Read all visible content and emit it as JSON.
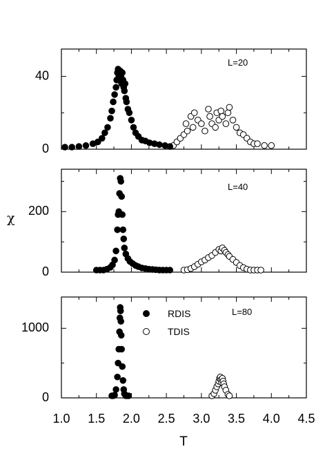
{
  "chart_data": [
    {
      "type": "scatter",
      "panel_label": "L=20",
      "xlabel": "",
      "ylabel": "",
      "xlim": [
        1.0,
        4.5
      ],
      "ylim": [
        0,
        55
      ],
      "yticks": [
        0,
        40
      ],
      "series": [
        {
          "name": "RDIS",
          "marker": "filled-circle",
          "x": [
            1.05,
            1.15,
            1.25,
            1.35,
            1.45,
            1.52,
            1.58,
            1.62,
            1.66,
            1.7,
            1.72,
            1.74,
            1.76,
            1.78,
            1.79,
            1.8,
            1.81,
            1.82,
            1.83,
            1.84,
            1.85,
            1.86,
            1.87,
            1.88,
            1.89,
            1.9,
            1.91,
            1.92,
            1.93,
            1.95,
            1.97,
            2.0,
            2.03,
            2.06,
            2.1,
            2.15,
            2.2,
            2.26,
            2.33,
            2.4,
            2.48,
            2.55
          ],
          "y": [
            1,
            1,
            1.5,
            2,
            3,
            4,
            6,
            9,
            12,
            17,
            21,
            26,
            30,
            34,
            38,
            42,
            44,
            40,
            38,
            43,
            40,
            36,
            42,
            38,
            34,
            32,
            36,
            28,
            26,
            22,
            20,
            16,
            12,
            9,
            7,
            5,
            4.5,
            3.5,
            3,
            2.5,
            2,
            1.5
          ]
        },
        {
          "name": "TDIS",
          "marker": "open-circle",
          "x": [
            2.6,
            2.65,
            2.7,
            2.75,
            2.78,
            2.8,
            2.85,
            2.88,
            2.9,
            2.95,
            3.0,
            3.05,
            3.1,
            3.12,
            3.15,
            3.2,
            3.22,
            3.25,
            3.28,
            3.3,
            3.35,
            3.38,
            3.4,
            3.45,
            3.5,
            3.55,
            3.6,
            3.65,
            3.7,
            3.75,
            3.8,
            3.9,
            4.0
          ],
          "y": [
            2,
            4,
            6,
            8,
            14,
            10,
            18,
            12,
            20,
            16,
            14,
            10,
            22,
            18,
            14,
            12,
            20,
            16,
            21,
            18,
            14,
            20,
            23,
            16,
            12,
            9,
            8,
            6,
            4,
            3,
            3,
            2,
            2
          ]
        }
      ]
    },
    {
      "type": "scatter",
      "panel_label": "L=40",
      "xlabel": "",
      "ylabel": "χ",
      "xlim": [
        1.0,
        4.5
      ],
      "ylim": [
        0,
        340
      ],
      "yticks": [
        0,
        200
      ],
      "series": [
        {
          "name": "RDIS",
          "marker": "filled-circle",
          "x": [
            1.5,
            1.55,
            1.6,
            1.65,
            1.7,
            1.73,
            1.76,
            1.78,
            1.8,
            1.81,
            1.82,
            1.83,
            1.84,
            1.85,
            1.86,
            1.87,
            1.88,
            1.89,
            1.9,
            1.92,
            1.95,
            1.98,
            2.02,
            2.06,
            2.1,
            2.15,
            2.2,
            2.25,
            2.3,
            2.35,
            2.4,
            2.45,
            2.5,
            2.55
          ],
          "y": [
            2,
            4,
            6,
            10,
            16,
            24,
            40,
            70,
            140,
            190,
            200,
            260,
            310,
            300,
            250,
            190,
            140,
            110,
            80,
            60,
            45,
            35,
            28,
            22,
            18,
            14,
            12,
            10,
            9,
            8,
            7,
            6,
            5,
            4
          ]
        },
        {
          "name": "TDIS",
          "marker": "open-circle",
          "x": [
            2.75,
            2.8,
            2.85,
            2.9,
            2.95,
            3.0,
            3.05,
            3.1,
            3.15,
            3.2,
            3.25,
            3.28,
            3.3,
            3.33,
            3.35,
            3.38,
            3.4,
            3.45,
            3.5,
            3.55,
            3.6,
            3.65,
            3.7,
            3.75,
            3.8,
            3.85
          ],
          "y": [
            5,
            8,
            12,
            18,
            26,
            34,
            40,
            48,
            55,
            65,
            75,
            70,
            80,
            72,
            65,
            58,
            52,
            42,
            32,
            22,
            15,
            10,
            7,
            5,
            4,
            3
          ]
        }
      ]
    },
    {
      "type": "scatter",
      "panel_label": "L=80",
      "xlabel": "T",
      "ylabel": "",
      "xlim": [
        1.0,
        4.5
      ],
      "ylim": [
        0,
        1450
      ],
      "yticks": [
        0,
        1000
      ],
      "xticks": [
        "1.0",
        "1.5",
        "2.0",
        "2.5",
        "3.0",
        "3.5",
        "4.0",
        "4.5"
      ],
      "legend": {
        "placement": "top-center",
        "entries": [
          "RDIS",
          "TDIS"
        ]
      },
      "series": [
        {
          "name": "RDIS",
          "marker": "filled-circle",
          "x": [
            1.72,
            1.74,
            1.76,
            1.78,
            1.8,
            1.81,
            1.82,
            1.83,
            1.835,
            1.84,
            1.845,
            1.85,
            1.855,
            1.86,
            1.87,
            1.88,
            1.89,
            1.9,
            1.92,
            1.94,
            1.96
          ],
          "y": [
            5,
            15,
            40,
            120,
            300,
            500,
            700,
            950,
            1150,
            1300,
            1250,
            1100,
            900,
            700,
            450,
            250,
            120,
            60,
            25,
            10,
            5
          ]
        },
        {
          "name": "TDIS",
          "marker": "open-circle",
          "x": [
            3.15,
            3.18,
            3.2,
            3.22,
            3.24,
            3.25,
            3.26,
            3.27,
            3.28,
            3.29,
            3.3,
            3.31,
            3.32,
            3.33,
            3.35,
            3.38,
            3.4
          ],
          "y": [
            20,
            60,
            110,
            160,
            200,
            240,
            280,
            300,
            260,
            220,
            280,
            240,
            200,
            160,
            110,
            50,
            15
          ]
        }
      ]
    }
  ]
}
